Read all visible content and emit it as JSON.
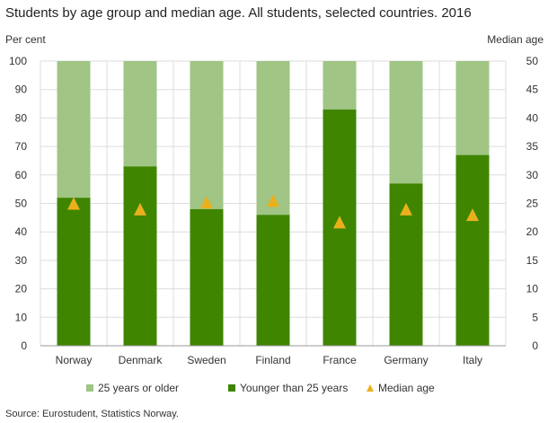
{
  "chart_data": {
    "type": "bar",
    "stacked": true,
    "title": "Students by age group and median age. All students, selected countries. 2016",
    "ylabel": "Per cent",
    "y2label": "Median age",
    "ylim": [
      0,
      100
    ],
    "y2lim": [
      0,
      50
    ],
    "yticks": [
      0,
      10,
      20,
      30,
      40,
      50,
      60,
      70,
      80,
      90,
      100
    ],
    "y2ticks": [
      0,
      5,
      10,
      15,
      20,
      25,
      30,
      35,
      40,
      45,
      50
    ],
    "grid": true,
    "legend_placement": "bottom",
    "categories": [
      "Norway",
      "Denmark",
      "Sweden",
      "Finland",
      "France",
      "Germany",
      "Italy"
    ],
    "series": [
      {
        "name": "Younger than 25 years",
        "values": [
          52,
          63,
          48,
          46,
          83,
          57,
          67
        ],
        "color": "#3f8500",
        "type": "bar"
      },
      {
        "name": "25 years or older",
        "values": [
          48,
          37,
          52,
          54,
          17,
          43,
          33
        ],
        "color": "#a0c584",
        "type": "bar"
      },
      {
        "name": "Median age",
        "values": [
          25,
          24,
          25.2,
          25.5,
          21.7,
          24,
          23
        ],
        "color": "#eab01c",
        "type": "marker",
        "axis": "right"
      }
    ],
    "legend_order": [
      "25 years or older",
      "Younger than 25 years",
      "Median age"
    ]
  },
  "source": "Source:  Eurostudent, Statistics Norway."
}
